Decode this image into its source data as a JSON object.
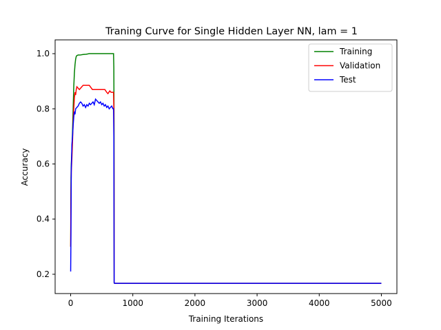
{
  "chart_data": {
    "type": "line",
    "title": "Traning Curve for Single Hidden Layer NN, lam = 1",
    "xlabel": "Training Iterations",
    "ylabel": "Accuracy",
    "xlim": [
      -250,
      5250
    ],
    "ylim": [
      0.13,
      1.05
    ],
    "xticks": [
      0,
      1000,
      2000,
      3000,
      4000,
      5000
    ],
    "yticks": [
      0.2,
      0.4,
      0.6,
      0.8,
      1.0
    ],
    "xtick_labels": [
      "0",
      "1000",
      "2000",
      "3000",
      "4000",
      "5000"
    ],
    "ytick_labels": [
      "0.2",
      "0.4",
      "0.6",
      "0.8",
      "1.0"
    ],
    "grid": false,
    "legend_position": "top-right",
    "series": [
      {
        "name": "Training",
        "color": "#008000",
        "x": [
          0,
          5,
          10,
          20,
          30,
          40,
          50,
          60,
          70,
          80,
          90,
          100,
          120,
          150,
          200,
          250,
          300,
          400,
          500,
          600,
          690,
          695,
          698,
          700,
          705,
          720,
          1000,
          2000,
          3000,
          4000,
          5000
        ],
        "y": [
          0.3,
          0.55,
          0.6,
          0.65,
          0.72,
          0.8,
          0.88,
          0.93,
          0.96,
          0.98,
          0.99,
          0.993,
          0.995,
          0.995,
          0.997,
          0.998,
          1.0,
          1.0,
          1.0,
          1.0,
          1.0,
          0.95,
          0.75,
          0.17,
          0.167,
          0.167,
          0.167,
          0.167,
          0.167,
          0.167,
          0.167
        ]
      },
      {
        "name": "Validation",
        "color": "#ff0000",
        "x": [
          0,
          5,
          10,
          20,
          30,
          40,
          50,
          60,
          70,
          80,
          90,
          100,
          120,
          140,
          160,
          180,
          200,
          250,
          300,
          350,
          400,
          450,
          500,
          550,
          580,
          600,
          630,
          650,
          690,
          695,
          698,
          700,
          705,
          720,
          1000,
          2000,
          3000,
          4000,
          5000
        ],
        "y": [
          0.3,
          0.5,
          0.57,
          0.62,
          0.68,
          0.75,
          0.8,
          0.84,
          0.86,
          0.85,
          0.87,
          0.88,
          0.875,
          0.87,
          0.875,
          0.88,
          0.885,
          0.885,
          0.885,
          0.87,
          0.87,
          0.87,
          0.87,
          0.87,
          0.86,
          0.855,
          0.865,
          0.86,
          0.86,
          0.8,
          0.55,
          0.17,
          0.167,
          0.167,
          0.167,
          0.167,
          0.167,
          0.167,
          0.167
        ]
      },
      {
        "name": "Test",
        "color": "#0000ff",
        "x": [
          0,
          5,
          10,
          15,
          20,
          30,
          40,
          50,
          60,
          70,
          80,
          100,
          120,
          140,
          160,
          180,
          200,
          220,
          240,
          260,
          280,
          300,
          320,
          340,
          360,
          380,
          400,
          420,
          440,
          460,
          480,
          500,
          520,
          540,
          560,
          580,
          600,
          620,
          640,
          660,
          680,
          690,
          695,
          698,
          700,
          705,
          720,
          1000,
          2000,
          3000,
          4000,
          5000
        ],
        "y": [
          0.21,
          0.35,
          0.58,
          0.62,
          0.67,
          0.7,
          0.74,
          0.77,
          0.79,
          0.78,
          0.8,
          0.805,
          0.81,
          0.82,
          0.825,
          0.82,
          0.81,
          0.815,
          0.805,
          0.815,
          0.81,
          0.82,
          0.815,
          0.82,
          0.825,
          0.815,
          0.835,
          0.83,
          0.825,
          0.82,
          0.825,
          0.815,
          0.82,
          0.81,
          0.815,
          0.805,
          0.81,
          0.8,
          0.805,
          0.81,
          0.8,
          0.8,
          0.7,
          0.36,
          0.17,
          0.167,
          0.167,
          0.167,
          0.167,
          0.167,
          0.167,
          0.167
        ]
      }
    ]
  }
}
